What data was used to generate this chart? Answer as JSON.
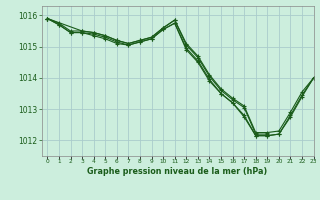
{
  "title": "Graphe pression niveau de la mer (hPa)",
  "background_color": "#cceedd",
  "grid_color": "#aacccc",
  "line_color": "#1a5c1a",
  "xlim": [
    -0.5,
    23
  ],
  "ylim": [
    1011.5,
    1016.3
  ],
  "yticks": [
    1012,
    1013,
    1014,
    1015,
    1016
  ],
  "xtick_labels": [
    "0",
    "1",
    "2",
    "3",
    "4",
    "5",
    "6",
    "7",
    "8",
    "9",
    "10",
    "11",
    "12",
    "13",
    "14",
    "15",
    "16",
    "17",
    "18",
    "19",
    "20",
    "21",
    "22",
    "23"
  ],
  "series": [
    {
      "x": [
        0,
        1,
        2,
        3,
        4,
        5,
        6,
        7,
        8,
        9,
        10,
        11,
        12,
        13,
        14,
        15,
        16,
        17,
        18,
        19
      ],
      "y": [
        1015.9,
        1015.75,
        1015.5,
        1015.5,
        1015.45,
        1015.35,
        1015.2,
        1015.1,
        1015.2,
        1015.3,
        1015.6,
        1015.85,
        1015.05,
        1014.65,
        1014.05,
        1013.6,
        1013.3,
        1013.05,
        1012.2,
        1012.2
      ]
    },
    {
      "x": [
        0,
        3,
        4,
        5,
        6,
        7,
        8,
        9,
        10,
        11,
        12,
        13,
        14,
        15,
        16,
        17,
        18,
        19,
        20,
        21,
        22,
        23
      ],
      "y": [
        1015.9,
        1015.5,
        1015.45,
        1015.35,
        1015.2,
        1015.1,
        1015.2,
        1015.3,
        1015.6,
        1015.85,
        1015.1,
        1014.7,
        1014.1,
        1013.65,
        1013.35,
        1013.1,
        1012.25,
        1012.25,
        1012.3,
        1012.9,
        1013.55,
        1014.0
      ]
    },
    {
      "x": [
        0,
        1,
        2,
        3,
        4,
        5,
        6,
        7,
        8,
        9,
        10,
        11,
        12,
        13,
        14,
        15,
        16,
        17,
        18,
        19,
        20,
        21,
        22,
        23
      ],
      "y": [
        1015.9,
        1015.7,
        1015.45,
        1015.45,
        1015.4,
        1015.3,
        1015.15,
        1015.05,
        1015.15,
        1015.25,
        1015.55,
        1015.75,
        1014.9,
        1014.5,
        1013.9,
        1013.5,
        1013.2,
        1012.8,
        1012.15,
        1012.15,
        1012.2,
        1012.8,
        1013.45,
        1014.0
      ]
    },
    {
      "x": [
        0,
        1,
        2,
        3,
        4,
        5,
        6,
        7,
        8,
        9,
        10,
        11,
        12,
        13,
        14,
        15,
        16,
        17,
        18,
        19,
        20,
        21,
        22,
        23
      ],
      "y": [
        1015.9,
        1015.7,
        1015.45,
        1015.45,
        1015.35,
        1015.25,
        1015.1,
        1015.05,
        1015.15,
        1015.25,
        1015.55,
        1015.75,
        1014.95,
        1014.55,
        1013.95,
        1013.5,
        1013.2,
        1012.75,
        1012.15,
        1012.15,
        1012.2,
        1012.75,
        1013.4,
        1014.0
      ]
    }
  ]
}
